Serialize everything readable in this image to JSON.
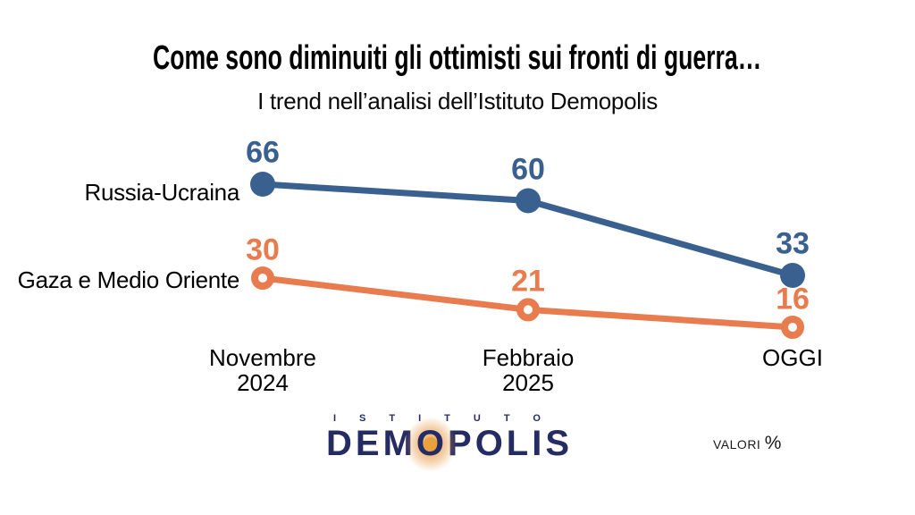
{
  "chart_data": {
    "type": "line",
    "title": "Come sono diminuiti gli ottimisti sui fronti di guerra…",
    "subtitle": "I trend nell’analisi dell’Istituto Demopolis",
    "categories": [
      [
        "Novembre",
        "2024"
      ],
      [
        "Febbraio",
        "2025"
      ],
      [
        "OGGI"
      ]
    ],
    "series": [
      {
        "name": "Russia-Ucraina",
        "values": [
          66,
          60,
          33
        ],
        "color": "#3A6090",
        "point_style": "filled"
      },
      {
        "name": "Gaza e Medio Oriente",
        "values": [
          30,
          21,
          16
        ],
        "color": "#E87C4E",
        "point_style": "hollow"
      }
    ],
    "value_labels_shown": true,
    "grid": false,
    "legend_position": "left-of-first-point",
    "unit": "%"
  },
  "footer": {
    "logo_top": "ISTITUTO",
    "logo_main_part1": "DEM",
    "logo_main_o": "O",
    "logo_main_part2": "POLIS",
    "note_label": "VALORI",
    "note_unit": "%"
  },
  "colors": {
    "series_blue": "#3A6090",
    "series_orange": "#E87C4E",
    "logo_navy": "#252B63",
    "background": "#FFFFFF"
  }
}
